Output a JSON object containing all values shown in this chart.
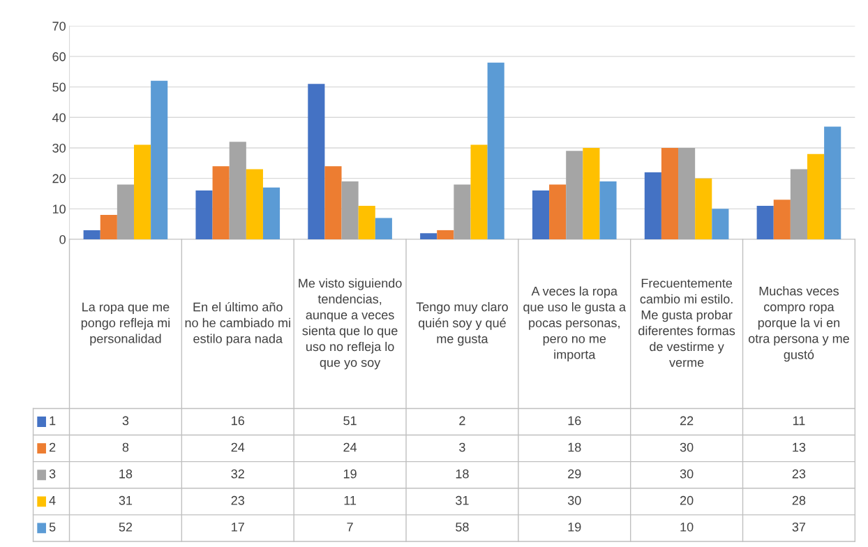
{
  "chart_data": {
    "type": "bar",
    "categories": [
      "La ropa que me pongo refleja mi personalidad",
      "En el último año no he cambiado mi estilo para nada",
      "Me visto siguiendo tendencias, aunque a veces sienta que lo que uso no refleja lo que yo soy",
      "Tengo muy claro quién soy y qué me gusta",
      "A veces la ropa que uso le gusta a pocas personas, pero no me importa",
      "Frecuentemente cambio mi estilo. Me gusta probar diferentes formas de vestirme y verme",
      "Muchas veces compro ropa porque la vi en otra persona y me gustó"
    ],
    "series": [
      {
        "name": "1",
        "color": "#4472c4",
        "values": [
          3,
          16,
          51,
          2,
          16,
          22,
          11
        ]
      },
      {
        "name": "2",
        "color": "#ed7d31",
        "values": [
          8,
          24,
          24,
          3,
          18,
          30,
          13
        ]
      },
      {
        "name": "3",
        "color": "#a5a5a5",
        "values": [
          18,
          32,
          19,
          18,
          29,
          30,
          23
        ]
      },
      {
        "name": "4",
        "color": "#ffc000",
        "values": [
          31,
          23,
          11,
          31,
          30,
          20,
          28
        ]
      },
      {
        "name": "5",
        "color": "#5b9bd5",
        "values": [
          52,
          17,
          7,
          58,
          19,
          10,
          37
        ]
      }
    ],
    "ylim": [
      0,
      70
    ],
    "yticks": [
      0,
      10,
      20,
      30,
      40,
      50,
      60,
      70
    ],
    "grid": "y",
    "data_labels": true,
    "legend": "bottom left"
  }
}
